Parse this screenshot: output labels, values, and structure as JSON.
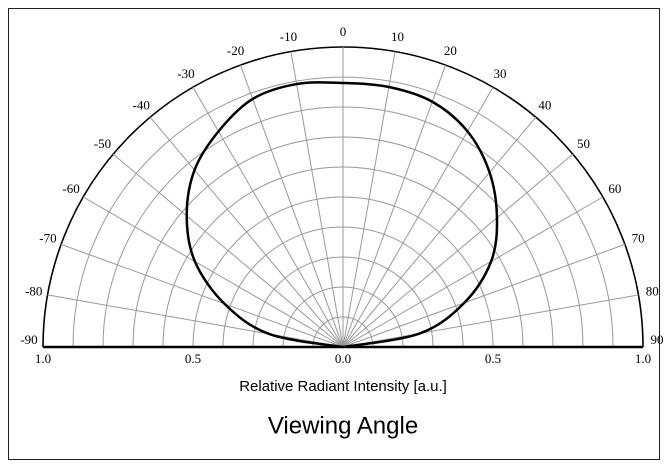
{
  "chart_data": {
    "type": "polar",
    "title": "Viewing Angle",
    "xlabel": "Relative Radiant Intensity [a.u.]",
    "x": [
      -90,
      -80,
      -70,
      -60,
      -50,
      -40,
      -30,
      -20,
      -10,
      0,
      10,
      20,
      30,
      40,
      50,
      60,
      70,
      80,
      90
    ],
    "series": [
      {
        "color": "#000000",
        "values": [
          0,
          0.25,
          0.42,
          0.57,
          0.68,
          0.77,
          0.83,
          0.88,
          0.89,
          0.88,
          0.88,
          0.87,
          0.83,
          0.76,
          0.67,
          0.57,
          0.43,
          0.26,
          0
        ]
      }
    ],
    "angle_ticks": [
      -90,
      -80,
      -70,
      -60,
      -50,
      -40,
      -30,
      -20,
      -10,
      0,
      10,
      20,
      30,
      40,
      50,
      60,
      70,
      80,
      90
    ],
    "rticks": [
      0.1,
      0.2,
      0.3,
      0.4,
      0.5,
      0.6,
      0.7,
      0.8,
      0.9,
      1
    ],
    "xlim": [
      -1,
      1
    ],
    "xticks": [
      {
        "value": -1,
        "label": "1.0"
      },
      {
        "value": -0.5,
        "label": "0.5"
      },
      {
        "value": 0,
        "label": "0.0"
      },
      {
        "value": 0.5,
        "label": "0.5"
      },
      {
        "value": 1,
        "label": "1.0"
      }
    ],
    "grid": true
  }
}
